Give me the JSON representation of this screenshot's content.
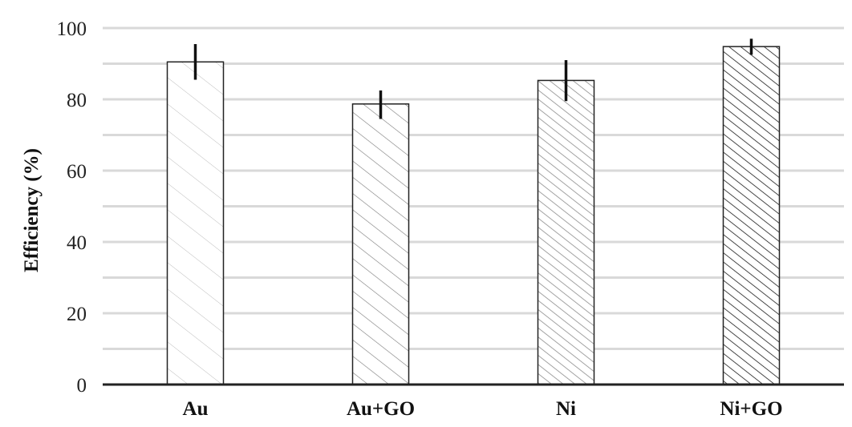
{
  "chart_data": {
    "type": "bar",
    "title": "",
    "xlabel": "",
    "ylabel": "Efficiency  (%)",
    "ylim": [
      0,
      100
    ],
    "yticks": [
      0,
      20,
      40,
      60,
      80,
      100
    ],
    "minor_gridlines": [
      10,
      30,
      50,
      70,
      90
    ],
    "grid": true,
    "legend": "none",
    "categories": [
      "Au",
      "Au+GO",
      "Ni",
      "Ni+GO"
    ],
    "values": [
      90.5,
      78.7,
      85.3,
      94.8
    ],
    "error_low": [
      85.5,
      74.5,
      79.5,
      92.5
    ],
    "error_high": [
      95.5,
      82.5,
      91,
      97
    ],
    "patterns": [
      {
        "color": "#bdbdbd",
        "density": "sparse"
      },
      {
        "color": "#7a7a7a",
        "density": "medium"
      },
      {
        "color": "#8c8c8c",
        "density": "dense"
      },
      {
        "color": "#1a1a1a",
        "density": "dense"
      }
    ]
  }
}
